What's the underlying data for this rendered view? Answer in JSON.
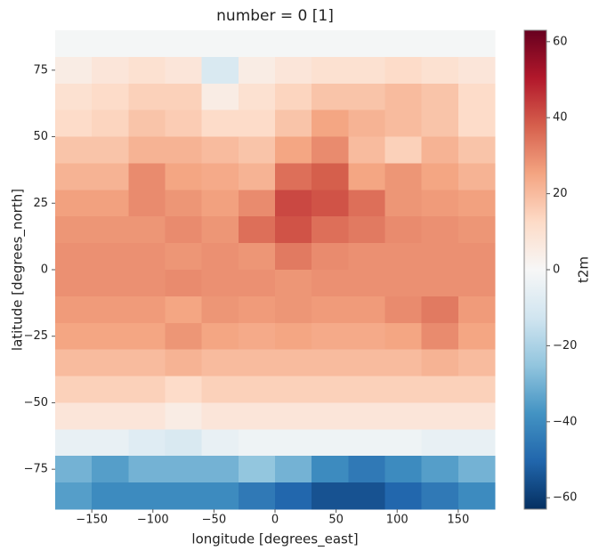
{
  "chart_data": {
    "type": "heatmap",
    "title": "number = 0 [1]",
    "x_label": "longitude [degrees_east]",
    "y_label": "latitude [degrees_north]",
    "colorbar_label": "t2m",
    "colormap": "RdBu_r",
    "x": [
      -165,
      -135,
      -105,
      -75,
      -45,
      -15,
      15,
      45,
      75,
      105,
      135,
      165
    ],
    "y": [
      85,
      75,
      65,
      55,
      45,
      35,
      25,
      15,
      5,
      -5,
      -15,
      -25,
      -35,
      -45,
      -55,
      -65,
      -75,
      -85
    ],
    "values": [
      [
        -1,
        -1,
        -1,
        -1,
        -1,
        -1,
        -1,
        -1,
        -1,
        -1,
        -1,
        -1
      ],
      [
        5,
        8,
        10,
        8,
        -10,
        5,
        8,
        10,
        10,
        12,
        10,
        8
      ],
      [
        10,
        12,
        15,
        15,
        5,
        10,
        14,
        18,
        18,
        20,
        18,
        12
      ],
      [
        12,
        14,
        18,
        16,
        12,
        12,
        18,
        25,
        22,
        20,
        18,
        12
      ],
      [
        18,
        18,
        22,
        22,
        20,
        18,
        25,
        30,
        20,
        15,
        22,
        18
      ],
      [
        22,
        22,
        30,
        25,
        24,
        22,
        35,
        38,
        25,
        28,
        25,
        22
      ],
      [
        26,
        26,
        30,
        28,
        26,
        30,
        42,
        40,
        35,
        28,
        27,
        26
      ],
      [
        28,
        28,
        28,
        30,
        28,
        35,
        40,
        35,
        33,
        30,
        29,
        28
      ],
      [
        29,
        29,
        29,
        28,
        29,
        28,
        33,
        30,
        29,
        29,
        29,
        29
      ],
      [
        29,
        29,
        29,
        30,
        29,
        29,
        28,
        29,
        29,
        29,
        29,
        29
      ],
      [
        27,
        27,
        27,
        25,
        28,
        27,
        28,
        27,
        27,
        30,
        33,
        27
      ],
      [
        25,
        25,
        25,
        28,
        25,
        24,
        25,
        24,
        24,
        25,
        30,
        25
      ],
      [
        20,
        20,
        20,
        22,
        20,
        20,
        20,
        20,
        20,
        20,
        22,
        20
      ],
      [
        15,
        15,
        15,
        12,
        15,
        15,
        15,
        15,
        15,
        15,
        15,
        15
      ],
      [
        8,
        8,
        8,
        5,
        8,
        8,
        8,
        8,
        8,
        8,
        8,
        8
      ],
      [
        -5,
        -5,
        -8,
        -10,
        -5,
        -3,
        -3,
        -3,
        -3,
        -3,
        -5,
        -5
      ],
      [
        -30,
        -35,
        -30,
        -30,
        -30,
        -25,
        -30,
        -40,
        -45,
        -40,
        -35,
        -30
      ],
      [
        -35,
        -40,
        -40,
        -40,
        -40,
        -45,
        -50,
        -55,
        -55,
        -50,
        -45,
        -40
      ]
    ],
    "xlim": [
      -180,
      180
    ],
    "ylim": [
      -90,
      90
    ],
    "xticks": [
      {
        "value": -150,
        "label": "−150"
      },
      {
        "value": -100,
        "label": "−100"
      },
      {
        "value": -50,
        "label": "−50"
      },
      0,
      50,
      100,
      150
    ],
    "yticks": [
      {
        "value": -75,
        "label": "−75"
      },
      {
        "value": -50,
        "label": "−50"
      },
      {
        "value": -25,
        "label": "−25"
      },
      0,
      25,
      50,
      75
    ],
    "clim": [
      -63,
      63
    ],
    "cticks": [
      {
        "value": -60,
        "label": "−60"
      },
      {
        "value": -40,
        "label": "−40"
      },
      {
        "value": -20,
        "label": "−20"
      },
      0,
      20,
      40,
      60
    ]
  }
}
